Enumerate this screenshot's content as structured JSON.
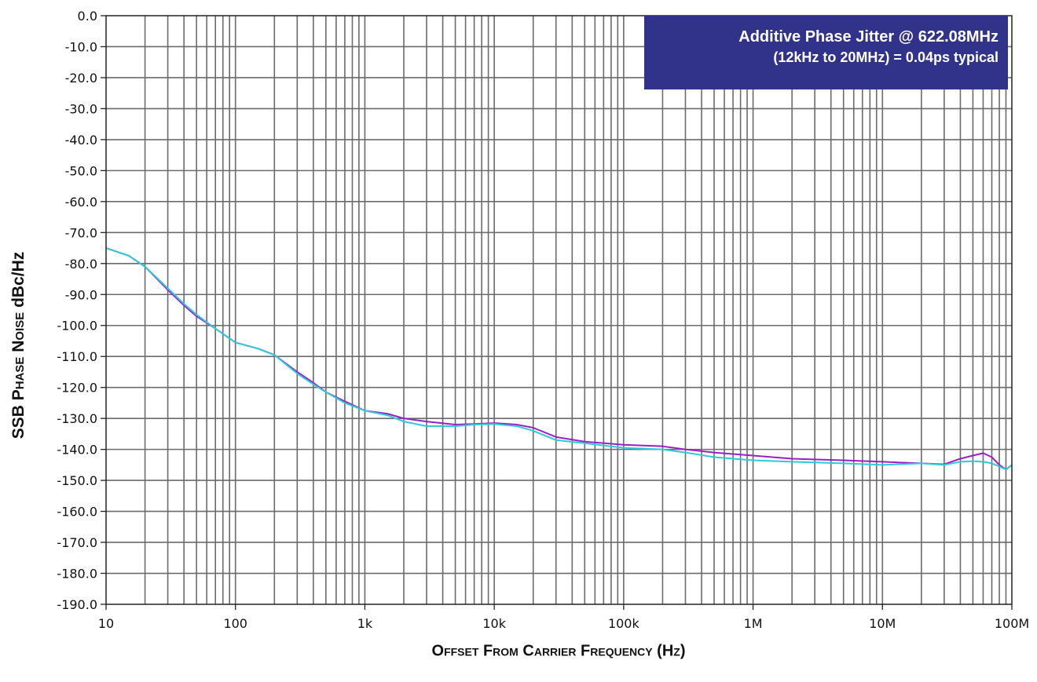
{
  "chart_data": {
    "type": "line",
    "xscale": "log",
    "xlim": [
      10,
      100000000
    ],
    "ylim": [
      -190,
      0
    ],
    "xticks": [
      10,
      100,
      1000,
      10000,
      100000,
      1000000,
      10000000,
      100000000
    ],
    "xtick_labels": [
      "10",
      "100",
      "1k",
      "10k",
      "100k",
      "1M",
      "10M",
      "100M"
    ],
    "yticks": [
      0,
      -10,
      -20,
      -30,
      -40,
      -50,
      -60,
      -70,
      -80,
      -90,
      -100,
      -110,
      -120,
      -130,
      -140,
      -150,
      -160,
      -170,
      -180,
      -190
    ],
    "ytick_labels": [
      "0.0",
      "-10.0",
      "-20.0",
      "-30.0",
      "-40.0",
      "-50.0",
      "-60.0",
      "-70.0",
      "-80.0",
      "-90.0",
      "-100.0",
      "-110.0",
      "-120.0",
      "-130.0",
      "-140.0",
      "-150.0",
      "-160.0",
      "-170.0",
      "-180.0",
      "-190.0"
    ],
    "grid": true,
    "xlabel": "Offset From Carrier Frequency (Hz)",
    "ylabel_bold": "SSB",
    "ylabel_sc": "Phase Noise",
    "ylabel_unit": "dBc/Hz",
    "annotation": {
      "line1": "Additive Phase Jitter @ 622.08MHz",
      "line2": "(12kHz to 20MHz) = 0.04ps typical",
      "background": "#31338b"
    },
    "series": [
      {
        "color": "#9b1fc9",
        "points": [
          [
            10,
            -75
          ],
          [
            15,
            -77.5
          ],
          [
            20,
            -81
          ],
          [
            30,
            -88.5
          ],
          [
            40,
            -93.5
          ],
          [
            50,
            -97
          ],
          [
            70,
            -101
          ],
          [
            100,
            -105.5
          ],
          [
            150,
            -107.5
          ],
          [
            200,
            -109.5
          ],
          [
            300,
            -115
          ],
          [
            400,
            -118.5
          ],
          [
            500,
            -121.5
          ],
          [
            700,
            -124.5
          ],
          [
            1000,
            -127.5
          ],
          [
            1500,
            -128.5
          ],
          [
            2000,
            -130
          ],
          [
            3000,
            -131
          ],
          [
            5000,
            -132
          ],
          [
            7000,
            -131.8
          ],
          [
            10000,
            -131.5
          ],
          [
            15000,
            -132
          ],
          [
            20000,
            -133
          ],
          [
            30000,
            -136
          ],
          [
            50000,
            -137.5
          ],
          [
            100000,
            -138.5
          ],
          [
            200000,
            -139
          ],
          [
            300000,
            -140
          ],
          [
            500000,
            -141
          ],
          [
            1000000,
            -142
          ],
          [
            2000000,
            -143
          ],
          [
            5000000,
            -143.5
          ],
          [
            10000000,
            -144
          ],
          [
            20000000,
            -144.5
          ],
          [
            30000000,
            -144.8
          ],
          [
            40000000,
            -143
          ],
          [
            50000000,
            -142
          ],
          [
            60000000,
            -141.2
          ],
          [
            70000000,
            -142.5
          ],
          [
            80000000,
            -145
          ],
          [
            90000000,
            -146.5
          ],
          [
            100000000,
            -145
          ]
        ]
      },
      {
        "color": "#2ecad8",
        "points": [
          [
            10,
            -75
          ],
          [
            15,
            -77.5
          ],
          [
            20,
            -81
          ],
          [
            30,
            -88
          ],
          [
            40,
            -93
          ],
          [
            50,
            -96.5
          ],
          [
            70,
            -101
          ],
          [
            100,
            -105.5
          ],
          [
            150,
            -107.5
          ],
          [
            200,
            -109.5
          ],
          [
            300,
            -115.5
          ],
          [
            400,
            -119
          ],
          [
            500,
            -121.5
          ],
          [
            700,
            -125
          ],
          [
            1000,
            -127.5
          ],
          [
            1500,
            -129
          ],
          [
            2000,
            -131
          ],
          [
            3000,
            -132.5
          ],
          [
            5000,
            -132.5
          ],
          [
            7000,
            -132
          ],
          [
            10000,
            -131.8
          ],
          [
            15000,
            -132.5
          ],
          [
            20000,
            -134
          ],
          [
            30000,
            -137
          ],
          [
            50000,
            -138
          ],
          [
            100000,
            -139.5
          ],
          [
            200000,
            -140
          ],
          [
            300000,
            -141
          ],
          [
            500000,
            -142.5
          ],
          [
            1000000,
            -143.5
          ],
          [
            2000000,
            -144
          ],
          [
            5000000,
            -144.5
          ],
          [
            10000000,
            -145
          ],
          [
            20000000,
            -144.5
          ],
          [
            30000000,
            -145
          ],
          [
            40000000,
            -144
          ],
          [
            50000000,
            -143.8
          ],
          [
            60000000,
            -144
          ],
          [
            70000000,
            -144.5
          ],
          [
            80000000,
            -145.5
          ],
          [
            90000000,
            -146.5
          ],
          [
            100000000,
            -145
          ]
        ]
      }
    ]
  }
}
